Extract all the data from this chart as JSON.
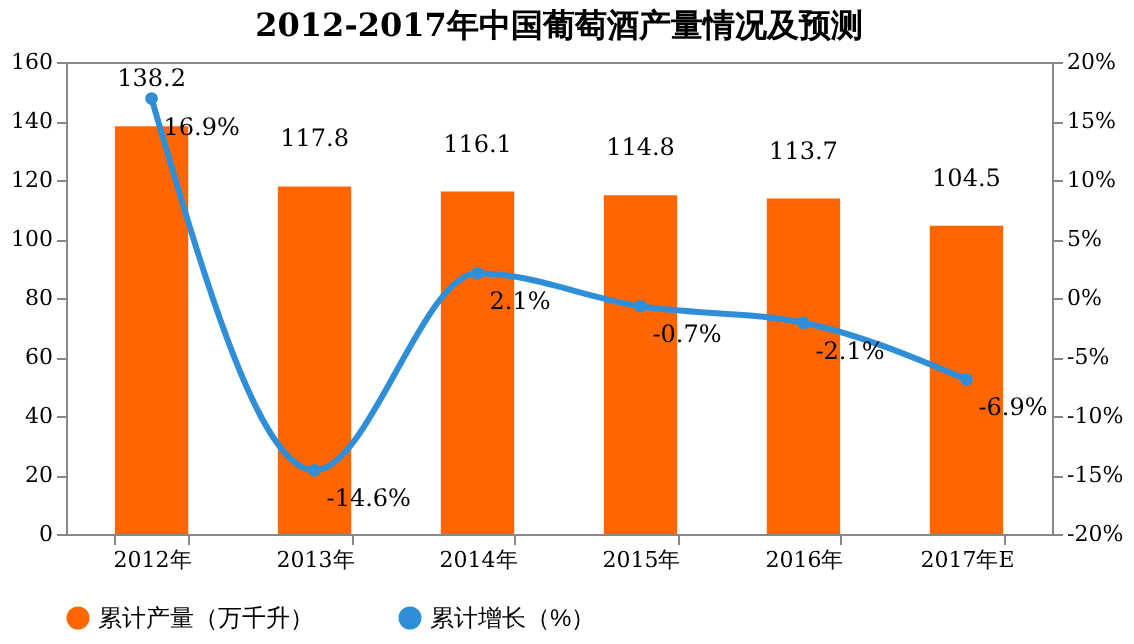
{
  "chart_data": {
    "type": "bar",
    "title": "2012-2017年中国葡萄酒产量情况及预测",
    "categories": [
      "2012年",
      "2013年",
      "2014年",
      "2015年",
      "2016年",
      "2017年E"
    ],
    "series": [
      {
        "name": "累计产量（万千升）",
        "color": "#ff6600",
        "type": "bar",
        "values": [
          138.2,
          117.8,
          116.1,
          114.8,
          113.7,
          104.5
        ],
        "data_labels": true
      },
      {
        "name": "累计增长（%）",
        "color": "#2e8fd8",
        "type": "line",
        "axis": "y2",
        "marker": "circle",
        "values": [
          16.9,
          -14.6,
          2.1,
          -0.7,
          -2.1,
          -6.9
        ],
        "value_labels": [
          "16.9%",
          "-14.6%",
          "2.1%",
          "-0.7%",
          "-2.1%",
          "-6.9%"
        ]
      }
    ],
    "ylim": [
      0,
      160
    ],
    "yticks": [
      0,
      20,
      40,
      60,
      80,
      100,
      120,
      140,
      160
    ],
    "y2lim": [
      -20,
      20
    ],
    "y2ticks": [
      {
        "value": -20,
        "label": "-20%"
      },
      {
        "value": -15,
        "label": "-15%"
      },
      {
        "value": -10,
        "label": "-10%"
      },
      {
        "value": -5,
        "label": "-5%"
      },
      {
        "value": 0,
        "label": "0%"
      },
      {
        "value": 5,
        "label": "5%"
      },
      {
        "value": 10,
        "label": "10%"
      },
      {
        "value": 15,
        "label": "15%"
      },
      {
        "value": 20,
        "label": "20%"
      }
    ],
    "grid": false,
    "legend": "bottom"
  }
}
